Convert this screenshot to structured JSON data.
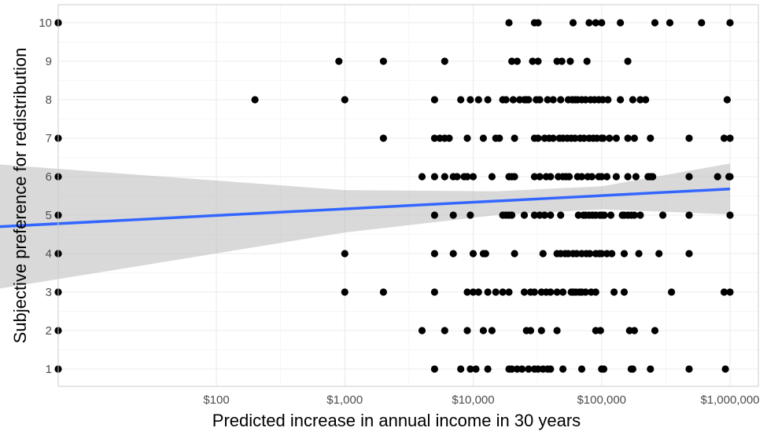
{
  "chart_data": {
    "type": "scatter",
    "title": "",
    "xlabel": "Predicted increase in annual income in 30 years",
    "ylabel": "Subjective preference for redistribution",
    "x_scale": "log10",
    "xlim": [
      1,
      1000000
    ],
    "ylim": [
      0.5,
      10.5
    ],
    "grid": true,
    "x_ticks": [
      100,
      1000,
      10000,
      100000,
      1000000
    ],
    "x_tick_labels": [
      "$100",
      "$1,000",
      "$10,000",
      "$100,000",
      "$1,000,000"
    ],
    "y_ticks": [
      1,
      2,
      3,
      4,
      5,
      6,
      7,
      8,
      9,
      10
    ],
    "y_tick_labels": [
      "1",
      "2",
      "3",
      "4",
      "5",
      "6",
      "7",
      "8",
      "9",
      "10"
    ],
    "colors": {
      "points": "#000000",
      "fit_line": "#3366ff",
      "confidence_band": "#bfbfbf",
      "grid": "#ebebeb"
    },
    "fit_line": {
      "x": [
        1.8,
        1000000
      ],
      "y": [
        4.69,
        5.68
      ]
    },
    "confidence_band": {
      "x": [
        1.8,
        1000,
        15000,
        100000,
        1000000
      ],
      "lower": [
        3.06,
        4.55,
        5.0,
        5.15,
        5.02
      ],
      "upper": [
        6.33,
        5.65,
        5.62,
        5.75,
        6.34
      ]
    },
    "points": [
      [
        1,
        10
      ],
      [
        1,
        10
      ],
      [
        1,
        7
      ],
      [
        1,
        6
      ],
      [
        1,
        5
      ],
      [
        1,
        4
      ],
      [
        1,
        3
      ],
      [
        1,
        2
      ],
      [
        1,
        1
      ],
      [
        1.8,
        4
      ],
      [
        200,
        8
      ],
      [
        900,
        9
      ],
      [
        1000,
        8
      ],
      [
        1000,
        4
      ],
      [
        1000,
        3
      ],
      [
        2000,
        9
      ],
      [
        2000,
        7
      ],
      [
        2000,
        3
      ],
      [
        4000,
        6
      ],
      [
        4000,
        2
      ],
      [
        5000,
        8
      ],
      [
        5000,
        7
      ],
      [
        5000,
        6
      ],
      [
        5000,
        5
      ],
      [
        5000,
        4
      ],
      [
        5000,
        3
      ],
      [
        5000,
        1
      ],
      [
        5500,
        7
      ],
      [
        6000,
        9
      ],
      [
        6000,
        7
      ],
      [
        6000,
        6
      ],
      [
        6000,
        2
      ],
      [
        6500,
        7
      ],
      [
        7000,
        6
      ],
      [
        7000,
        5
      ],
      [
        7000,
        4
      ],
      [
        7500,
        6
      ],
      [
        8000,
        8
      ],
      [
        8000,
        1
      ],
      [
        8500,
        6
      ],
      [
        9000,
        7
      ],
      [
        9000,
        6
      ],
      [
        9000,
        3
      ],
      [
        9000,
        2
      ],
      [
        9500,
        8
      ],
      [
        9500,
        5
      ],
      [
        9500,
        1
      ],
      [
        10000,
        6
      ],
      [
        10000,
        4
      ],
      [
        10000,
        3
      ],
      [
        10500,
        1
      ],
      [
        11000,
        8
      ],
      [
        11000,
        3
      ],
      [
        12000,
        7
      ],
      [
        12000,
        4
      ],
      [
        12000,
        2
      ],
      [
        12500,
        4
      ],
      [
        13000,
        8
      ],
      [
        13000,
        3
      ],
      [
        13000,
        1
      ],
      [
        14000,
        6
      ],
      [
        14000,
        2
      ],
      [
        15000,
        7
      ],
      [
        15000,
        3
      ],
      [
        16000,
        7
      ],
      [
        17000,
        8
      ],
      [
        17000,
        5
      ],
      [
        17000,
        3
      ],
      [
        18000,
        8
      ],
      [
        18000,
        5
      ],
      [
        19000,
        10
      ],
      [
        19000,
        6
      ],
      [
        19000,
        5
      ],
      [
        19000,
        3
      ],
      [
        19000,
        1
      ],
      [
        20000,
        9
      ],
      [
        20000,
        6
      ],
      [
        20000,
        5
      ],
      [
        20000,
        1
      ],
      [
        20500,
        8
      ],
      [
        21000,
        7
      ],
      [
        21000,
        6
      ],
      [
        21000,
        4
      ],
      [
        22000,
        9
      ],
      [
        22000,
        1
      ],
      [
        23000,
        8
      ],
      [
        24000,
        1
      ],
      [
        25000,
        8
      ],
      [
        25000,
        5
      ],
      [
        25000,
        3
      ],
      [
        26000,
        8
      ],
      [
        26000,
        2
      ],
      [
        27000,
        8
      ],
      [
        27000,
        1
      ],
      [
        28000,
        2
      ],
      [
        28000,
        3
      ],
      [
        29000,
        9
      ],
      [
        30000,
        10
      ],
      [
        30000,
        7
      ],
      [
        30000,
        6
      ],
      [
        30000,
        5
      ],
      [
        30000,
        3
      ],
      [
        30000,
        1
      ],
      [
        31000,
        8
      ],
      [
        32000,
        10
      ],
      [
        32000,
        9
      ],
      [
        32000,
        7
      ],
      [
        32000,
        1
      ],
      [
        33000,
        8
      ],
      [
        33000,
        6
      ],
      [
        33000,
        5
      ],
      [
        34000,
        3
      ],
      [
        34000,
        2
      ],
      [
        35000,
        4
      ],
      [
        35000,
        1
      ],
      [
        36000,
        7
      ],
      [
        36000,
        5
      ],
      [
        37000,
        6
      ],
      [
        37000,
        3
      ],
      [
        38000,
        8
      ],
      [
        38000,
        1
      ],
      [
        39000,
        7
      ],
      [
        40000,
        6
      ],
      [
        40000,
        5
      ],
      [
        40000,
        3
      ],
      [
        40000,
        1
      ],
      [
        42000,
        8
      ],
      [
        42000,
        7
      ],
      [
        45000,
        9
      ],
      [
        45000,
        4
      ],
      [
        45000,
        3
      ],
      [
        45000,
        2
      ],
      [
        46000,
        6
      ],
      [
        47000,
        7
      ],
      [
        48000,
        5
      ],
      [
        48000,
        4
      ],
      [
        48000,
        8
      ],
      [
        49000,
        9
      ],
      [
        50000,
        7
      ],
      [
        50000,
        6
      ],
      [
        50000,
        3
      ],
      [
        50000,
        1
      ],
      [
        52000,
        4
      ],
      [
        53000,
        6
      ],
      [
        54000,
        7
      ],
      [
        55000,
        8
      ],
      [
        55000,
        4
      ],
      [
        56000,
        6
      ],
      [
        57000,
        9
      ],
      [
        58000,
        7
      ],
      [
        58000,
        3
      ],
      [
        59000,
        8
      ],
      [
        60000,
        10
      ],
      [
        60000,
        4
      ],
      [
        60000,
        3
      ],
      [
        62000,
        7
      ],
      [
        62000,
        8
      ],
      [
        63000,
        3
      ],
      [
        64000,
        4
      ],
      [
        65000,
        6
      ],
      [
        65000,
        8
      ],
      [
        66000,
        5
      ],
      [
        67000,
        3
      ],
      [
        68000,
        7
      ],
      [
        70000,
        8
      ],
      [
        70000,
        6
      ],
      [
        70000,
        4
      ],
      [
        70000,
        3
      ],
      [
        70000,
        1
      ],
      [
        72000,
        5
      ],
      [
        73000,
        7
      ],
      [
        75000,
        8
      ],
      [
        75000,
        5
      ],
      [
        75000,
        3
      ],
      [
        76000,
        4
      ],
      [
        77000,
        9
      ],
      [
        78000,
        6
      ],
      [
        80000,
        10
      ],
      [
        80000,
        7
      ],
      [
        80000,
        5
      ],
      [
        81000,
        4
      ],
      [
        82000,
        8
      ],
      [
        83000,
        3
      ],
      [
        84000,
        6
      ],
      [
        85000,
        5
      ],
      [
        86000,
        7
      ],
      [
        88000,
        8
      ],
      [
        90000,
        10
      ],
      [
        90000,
        5
      ],
      [
        90000,
        4
      ],
      [
        90000,
        3
      ],
      [
        90000,
        2
      ],
      [
        92000,
        7
      ],
      [
        95000,
        6
      ],
      [
        95000,
        8
      ],
      [
        96000,
        4
      ],
      [
        97000,
        5
      ],
      [
        98000,
        2
      ],
      [
        100000,
        10
      ],
      [
        100000,
        7
      ],
      [
        100000,
        6
      ],
      [
        100000,
        5
      ],
      [
        100000,
        4
      ],
      [
        100000,
        1
      ],
      [
        102000,
        8
      ],
      [
        103000,
        7
      ],
      [
        104000,
        1
      ],
      [
        105000,
        5
      ],
      [
        110000,
        6
      ],
      [
        110000,
        4
      ],
      [
        112000,
        8
      ],
      [
        115000,
        7
      ],
      [
        118000,
        5
      ],
      [
        120000,
        4
      ],
      [
        125000,
        3
      ],
      [
        130000,
        6
      ],
      [
        130000,
        7
      ],
      [
        140000,
        10
      ],
      [
        140000,
        8
      ],
      [
        145000,
        5
      ],
      [
        150000,
        5
      ],
      [
        150000,
        4
      ],
      [
        150000,
        3
      ],
      [
        160000,
        9
      ],
      [
        160000,
        7
      ],
      [
        160000,
        6
      ],
      [
        160000,
        5
      ],
      [
        165000,
        2
      ],
      [
        170000,
        5
      ],
      [
        170000,
        1
      ],
      [
        175000,
        8
      ],
      [
        175000,
        1
      ],
      [
        180000,
        7
      ],
      [
        180000,
        5
      ],
      [
        180000,
        2
      ],
      [
        185000,
        6
      ],
      [
        195000,
        4
      ],
      [
        200000,
        8
      ],
      [
        200000,
        5
      ],
      [
        220000,
        8
      ],
      [
        230000,
        6
      ],
      [
        240000,
        7
      ],
      [
        240000,
        6
      ],
      [
        240000,
        1
      ],
      [
        250000,
        6
      ],
      [
        260000,
        10
      ],
      [
        260000,
        2
      ],
      [
        280000,
        4
      ],
      [
        300000,
        5
      ],
      [
        340000,
        10
      ],
      [
        350000,
        3
      ],
      [
        480000,
        7
      ],
      [
        480000,
        6
      ],
      [
        480000,
        5
      ],
      [
        480000,
        4
      ],
      [
        480000,
        1
      ],
      [
        600000,
        10
      ],
      [
        800000,
        6
      ],
      [
        900000,
        7
      ],
      [
        900000,
        3
      ],
      [
        920000,
        1
      ],
      [
        950000,
        8
      ],
      [
        980000,
        6
      ],
      [
        1000000,
        10
      ],
      [
        1000000,
        7
      ],
      [
        1000000,
        6
      ],
      [
        1000000,
        5
      ],
      [
        1000000,
        3
      ]
    ]
  }
}
